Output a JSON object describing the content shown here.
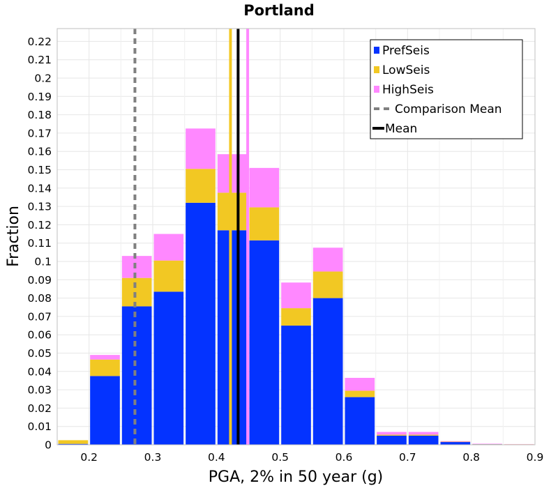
{
  "chart_data": {
    "type": "bar",
    "stacked": true,
    "title": "Portland",
    "xlabel": "PGA, 2% in 50 year (g)",
    "ylabel": "Fraction",
    "xlim": [
      0.15,
      0.9
    ],
    "ylim": [
      0,
      0.227
    ],
    "grid": true,
    "legend_position": "top-right",
    "x_ticks": [
      0.2,
      0.3,
      0.4,
      0.5,
      0.6,
      0.7,
      0.8,
      0.9
    ],
    "x_tick_labels": [
      "0.2",
      "0.3",
      "0.4",
      "0.5",
      "0.6",
      "0.7",
      "0.8",
      "0.9"
    ],
    "y_ticks": [
      0,
      0.01,
      0.02,
      0.03,
      0.04,
      0.05,
      0.06,
      0.07,
      0.08,
      0.09,
      0.1,
      0.11,
      0.12,
      0.13,
      0.14,
      0.15,
      0.16,
      0.17,
      0.18,
      0.19,
      0.2,
      0.21,
      0.22
    ],
    "y_tick_labels": [
      "0",
      "0.01",
      "0.02",
      "0.03",
      "0.04",
      "0.05",
      "0.06",
      "0.07",
      "0.08",
      "0.09",
      "0.1",
      "0.11",
      "0.12",
      "0.13",
      "0.14",
      "0.15",
      "0.16",
      "0.17",
      "0.18",
      "0.19",
      "0.2",
      "0.21",
      "0.22"
    ],
    "bin_width": 0.05,
    "x": [
      0.175,
      0.225,
      0.275,
      0.325,
      0.375,
      0.425,
      0.475,
      0.525,
      0.575,
      0.625,
      0.675,
      0.725,
      0.775,
      0.825,
      0.875
    ],
    "series": [
      {
        "name": "PrefSeis",
        "color": "#0433ff",
        "values": [
          0.0005,
          0.0375,
          0.0755,
          0.0835,
          0.132,
          0.117,
          0.1115,
          0.065,
          0.08,
          0.026,
          0.005,
          0.005,
          0.0015,
          0.0003,
          0.0002
        ]
      },
      {
        "name": "LowSeis",
        "color": "#f2c823",
        "values": [
          0.002,
          0.009,
          0.0155,
          0.017,
          0.0185,
          0.0205,
          0.018,
          0.0095,
          0.0145,
          0.0035,
          0.0005,
          0.0005,
          0.0002,
          0.0001,
          0.0001
        ]
      },
      {
        "name": "HighSeis",
        "color": "#ff88ff",
        "values": [
          0,
          0.0025,
          0.012,
          0.0145,
          0.022,
          0.021,
          0.0215,
          0.014,
          0.013,
          0.007,
          0.0015,
          0.0015,
          0.0003,
          0.0002,
          0.0001
        ]
      }
    ],
    "vertical_lines": [
      {
        "x": 0.272,
        "color": "#808080",
        "style": "dashed"
      },
      {
        "x": 0.422,
        "color": "#f2c823",
        "style": "solid"
      },
      {
        "x": 0.449,
        "color": "#ff88ff",
        "style": "solid"
      },
      {
        "x": 0.434,
        "color": "#000000",
        "style": "solid"
      }
    ],
    "legend": [
      {
        "label": "PrefSeis",
        "kind": "box",
        "color": "#0433ff"
      },
      {
        "label": "LowSeis",
        "kind": "box",
        "color": "#f2c823"
      },
      {
        "label": "HighSeis",
        "kind": "box",
        "color": "#ff88ff"
      },
      {
        "label": "Comparison Mean",
        "kind": "dashed-line",
        "color": "#808080"
      },
      {
        "label": "Mean",
        "kind": "line",
        "color": "#000000"
      }
    ]
  }
}
